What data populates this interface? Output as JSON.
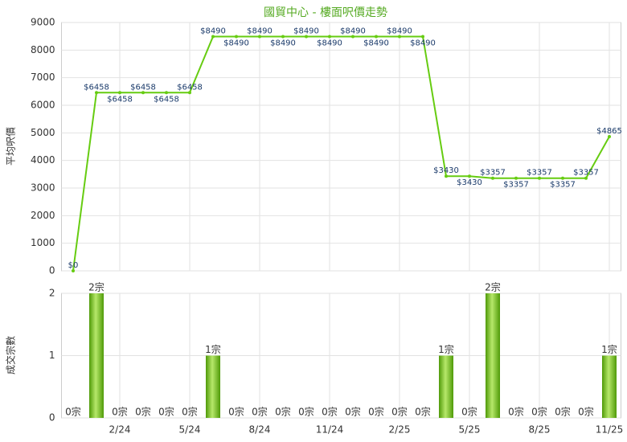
{
  "title": "國貿中心 - 樓面呎價走勢",
  "chart_data": [
    {
      "type": "line",
      "y_label": "平均呎價",
      "color": "#66cc11",
      "categories": [
        null,
        null,
        "2/24",
        null,
        null,
        "5/24",
        null,
        null,
        "8/24",
        null,
        null,
        "11/24",
        null,
        null,
        "2/25",
        null,
        null,
        "5/25",
        null,
        null,
        "8/25",
        null,
        null,
        "11/25"
      ],
      "values": [
        0,
        6458,
        6458,
        6458,
        6458,
        6458,
        8490,
        8490,
        8490,
        8490,
        8490,
        8490,
        8490,
        8490,
        8490,
        8490,
        3430,
        3430,
        3357,
        3357,
        3357,
        3357,
        3357,
        4865
      ],
      "value_labels": [
        "$0",
        "$6458",
        "$6458",
        "$6458",
        "$6458",
        "$6458",
        "$8490",
        "$8490",
        "$8490",
        "$8490",
        "$8490",
        "$8490",
        "$8490",
        "$8490",
        "$8490",
        "$8490",
        "$3430",
        "$3430",
        "$3357",
        "$3357",
        "$3357",
        "$3357",
        "$3357",
        "$4865"
      ],
      "ylim": [
        0,
        9000
      ],
      "yticks": [
        0,
        1000,
        2000,
        3000,
        4000,
        5000,
        6000,
        7000,
        8000,
        9000
      ],
      "grid": true
    },
    {
      "type": "bar",
      "y_label": "成交宗數",
      "color": "#66bb11",
      "categories": [
        null,
        null,
        "2/24",
        null,
        null,
        "5/24",
        null,
        null,
        "8/24",
        null,
        null,
        "11/24",
        null,
        null,
        "2/25",
        null,
        null,
        "5/25",
        null,
        null,
        "8/25",
        null,
        null,
        "11/25"
      ],
      "values": [
        0,
        2,
        0,
        0,
        0,
        0,
        1,
        0,
        0,
        0,
        0,
        0,
        0,
        0,
        0,
        0,
        1,
        0,
        2,
        0,
        0,
        0,
        0,
        1
      ],
      "value_labels": [
        "0宗",
        "2宗",
        "0宗",
        "0宗",
        "0宗",
        "0宗",
        "1宗",
        "0宗",
        "0宗",
        "0宗",
        "0宗",
        "0宗",
        "0宗",
        "0宗",
        "0宗",
        "0宗",
        "1宗",
        "0宗",
        "2宗",
        "0宗",
        "0宗",
        "0宗",
        "0宗",
        "1宗"
      ],
      "ylim": [
        0,
        2
      ],
      "yticks": [
        0,
        1,
        2
      ],
      "grid": true
    }
  ]
}
